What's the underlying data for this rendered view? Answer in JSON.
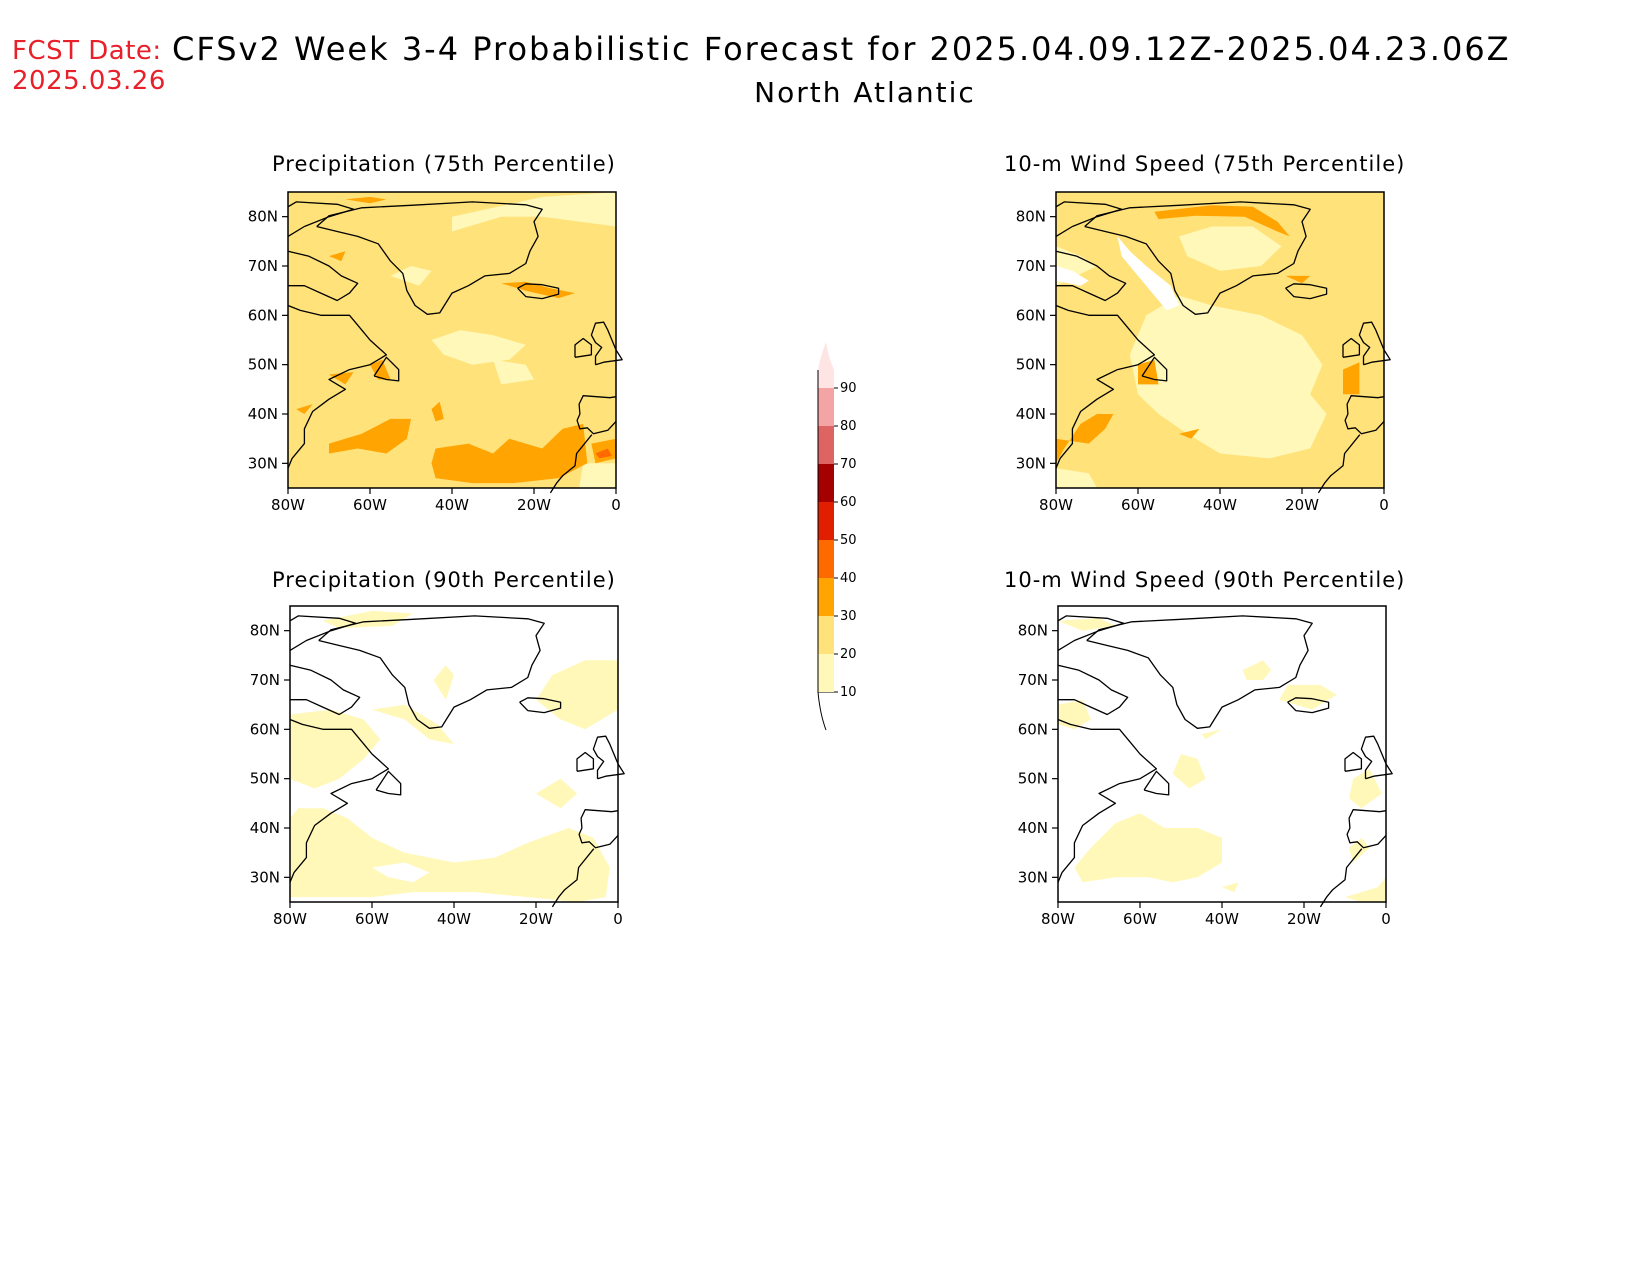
{
  "header": {
    "fcst_label": "FCST Date:",
    "fcst_date": "2025.03.26",
    "title": "CFSv2 Week 3-4 Probabilistic Forecast for 2025.04.09.12Z-2025.04.23.06Z",
    "region": "North Atlantic"
  },
  "panels": [
    {
      "title": "Precipitation (75th Percentile)"
    },
    {
      "title": "10-m Wind Speed (75th Percentile)"
    },
    {
      "title": "Precipitation (90th Percentile)"
    },
    {
      "title": "10-m Wind Speed (90th Percentile)"
    }
  ],
  "axes": {
    "lat_labels": [
      "80N",
      "70N",
      "60N",
      "50N",
      "40N",
      "30N"
    ],
    "lon_labels": [
      "80W",
      "60W",
      "40W",
      "20W",
      "0"
    ],
    "lat_range": [
      25,
      85
    ],
    "lon_range": [
      -80,
      0
    ]
  },
  "colorbar": {
    "levels": [
      "10",
      "20",
      "30",
      "40",
      "50",
      "60",
      "70",
      "80",
      "90"
    ],
    "colors": [
      "#fff8b8",
      "#ffe27a",
      "#ffa400",
      "#ff6a00",
      "#e11f00",
      "#a50000",
      "#de6464",
      "#f4a4a4",
      "#ffe4e4"
    ]
  }
}
